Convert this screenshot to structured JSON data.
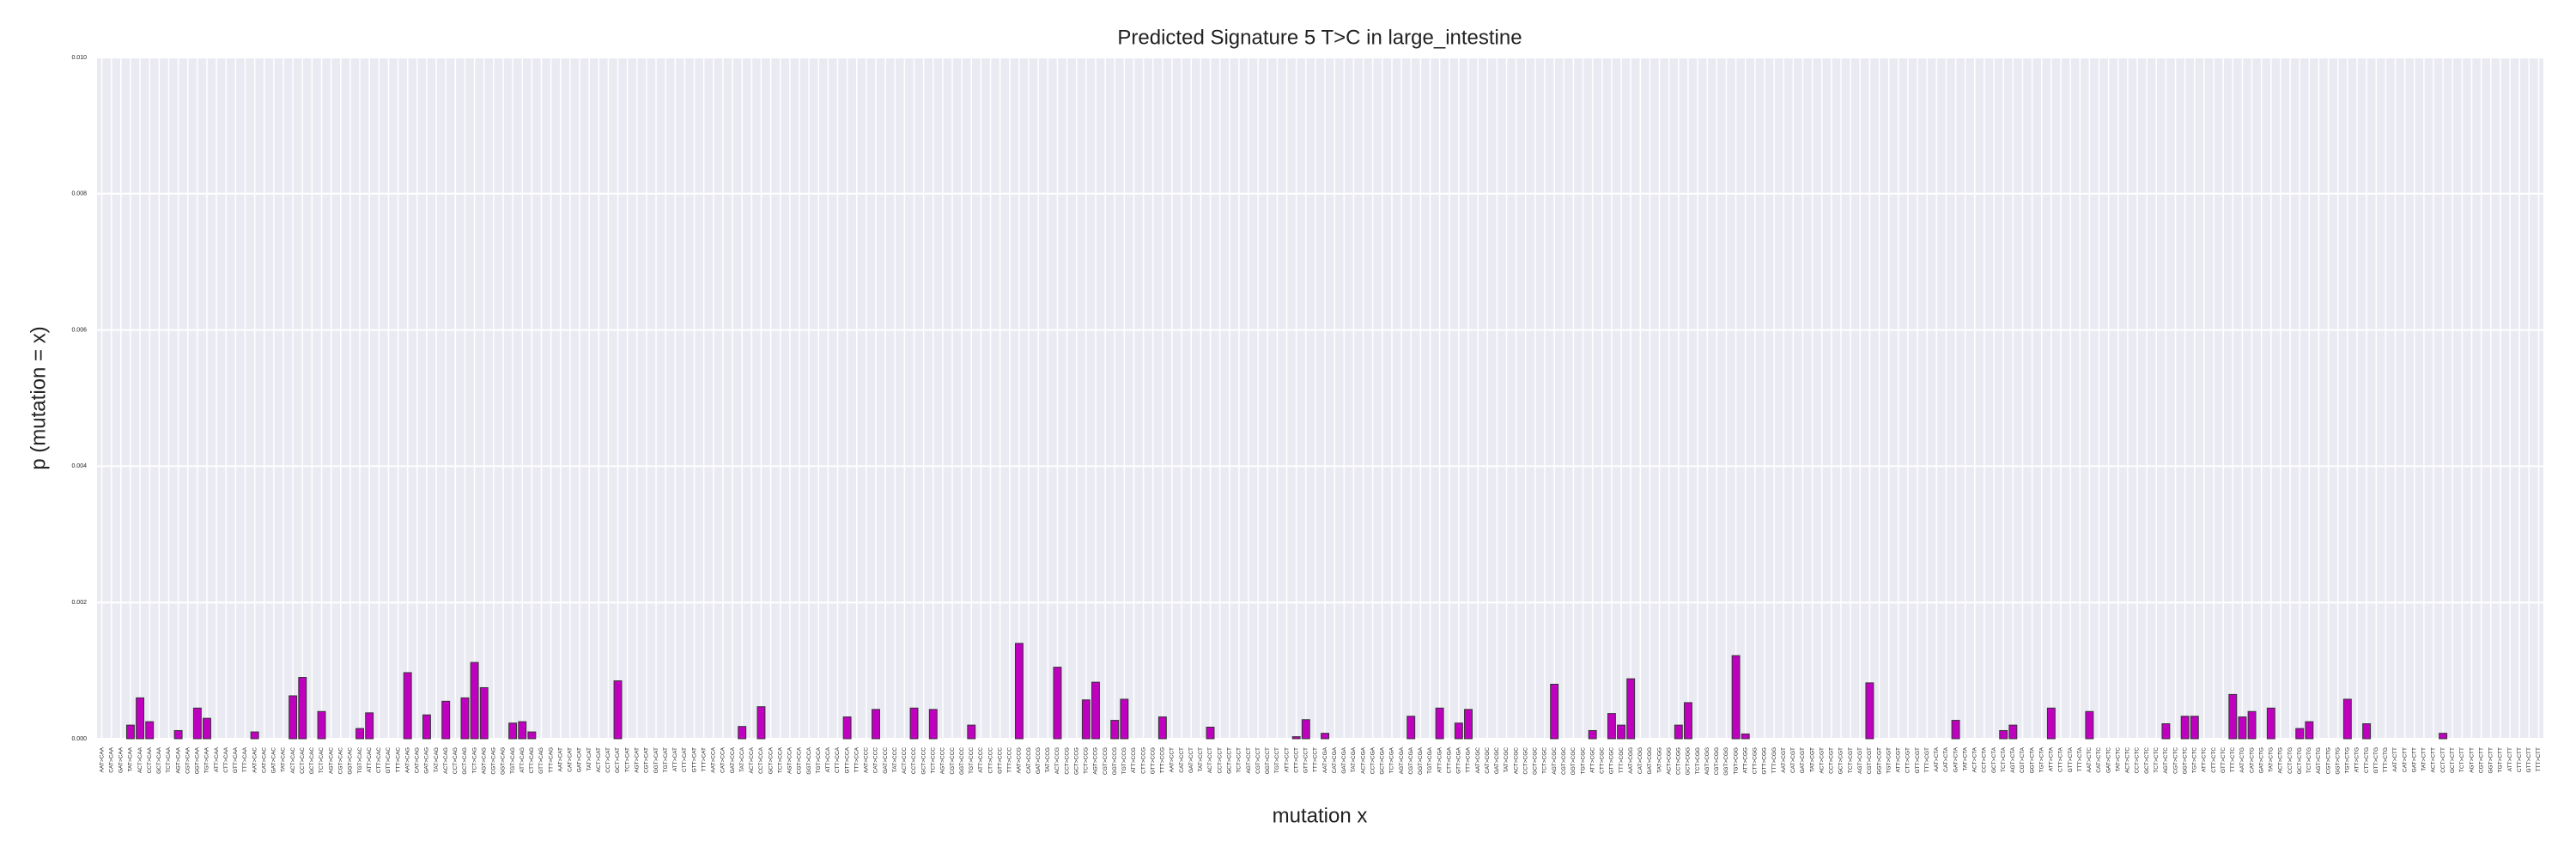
{
  "chart_data": {
    "type": "bar",
    "title": "Predicted Signature 5 T>C in large_intestine",
    "xlabel": "mutation x",
    "ylabel": "p (mutation = x)",
    "color": "#bf00bf",
    "grid": true,
    "ylim": [
      0,
      0.01
    ],
    "yticks": [
      {
        "value": 0,
        "label": "0.000"
      },
      {
        "value": 0.002,
        "label": "0.002"
      },
      {
        "value": 0.004,
        "label": "0.004"
      },
      {
        "value": 0.006,
        "label": "0.006"
      },
      {
        "value": 0.008,
        "label": "0.008"
      },
      {
        "value": 0.01,
        "label": "0.010"
      }
    ],
    "categories": [
      "AAT>CAA",
      "CAT>CAA",
      "GAT>CAA",
      "TAT>CAA",
      "ACT>CAA",
      "CCT>CAA",
      "GCT>CAA",
      "TCT>CAA",
      "AGT>CAA",
      "CGT>CAA",
      "GGT>CAA",
      "TGT>CAA",
      "ATT>CAA",
      "CTT>CAA",
      "GTT>CAA",
      "TTT>CAA",
      "AAT>CAC",
      "CAT>CAC",
      "GAT>CAC",
      "TAT>CAC",
      "ACT>CAC",
      "CCT>CAC",
      "GCT>CAC",
      "TCT>CAC",
      "AGT>CAC",
      "CGT>CAC",
      "GGT>CAC",
      "TGT>CAC",
      "ATT>CAC",
      "CTT>CAC",
      "GTT>CAC",
      "TTT>CAC",
      "AAT>CAG",
      "CAT>CAG",
      "GAT>CAG",
      "TAT>CAG",
      "ACT>CAG",
      "CCT>CAG",
      "GCT>CAG",
      "TCT>CAG",
      "AGT>CAG",
      "CGT>CAG",
      "GGT>CAG",
      "TGT>CAG",
      "ATT>CAG",
      "CTT>CAG",
      "GTT>CAG",
      "TTT>CAG",
      "AAT>CAT",
      "CAT>CAT",
      "GAT>CAT",
      "TAT>CAT",
      "ACT>CAT",
      "CCT>CAT",
      "GCT>CAT",
      "TCT>CAT",
      "AGT>CAT",
      "CGT>CAT",
      "GGT>CAT",
      "TGT>CAT",
      "ATT>CAT",
      "CTT>CAT",
      "GTT>CAT",
      "TTT>CAT",
      "AAT>CCA",
      "CAT>CCA",
      "GAT>CCA",
      "TAT>CCA",
      "ACT>CCA",
      "CCT>CCA",
      "GCT>CCA",
      "TCT>CCA",
      "AGT>CCA",
      "CGT>CCA",
      "GGT>CCA",
      "TGT>CCA",
      "ATT>CCA",
      "CTT>CCA",
      "GTT>CCA",
      "TTT>CCA",
      "AAT>CCC",
      "CAT>CCC",
      "GAT>CCC",
      "TAT>CCC",
      "ACT>CCC",
      "CCT>CCC",
      "GCT>CCC",
      "TCT>CCC",
      "AGT>CCC",
      "CGT>CCC",
      "GGT>CCC",
      "TGT>CCC",
      "ATT>CCC",
      "CTT>CCC",
      "GTT>CCC",
      "TTT>CCC",
      "AAT>CCG",
      "CAT>CCG",
      "GAT>CCG",
      "TAT>CCG",
      "ACT>CCG",
      "CCT>CCG",
      "GCT>CCG",
      "TCT>CCG",
      "AGT>CCG",
      "CGT>CCG",
      "GGT>CCG",
      "TGT>CCG",
      "ATT>CCG",
      "CTT>CCG",
      "GTT>CCG",
      "TTT>CCG",
      "AAT>CCT",
      "CAT>CCT",
      "GAT>CCT",
      "TAT>CCT",
      "ACT>CCT",
      "CCT>CCT",
      "GCT>CCT",
      "TCT>CCT",
      "AGT>CCT",
      "CGT>CCT",
      "GGT>CCT",
      "TGT>CCT",
      "ATT>CCT",
      "CTT>CCT",
      "GTT>CCT",
      "TTT>CCT",
      "AAT>CGA",
      "CAT>CGA",
      "GAT>CGA",
      "TAT>CGA",
      "ACT>CGA",
      "CCT>CGA",
      "GCT>CGA",
      "TCT>CGA",
      "AGT>CGA",
      "CGT>CGA",
      "GGT>CGA",
      "TGT>CGA",
      "ATT>CGA",
      "CTT>CGA",
      "GTT>CGA",
      "TTT>CGA",
      "AAT>CGC",
      "CAT>CGC",
      "GAT>CGC",
      "TAT>CGC",
      "ACT>CGC",
      "CCT>CGC",
      "GCT>CGC",
      "TCT>CGC",
      "AGT>CGC",
      "CGT>CGC",
      "GGT>CGC",
      "TGT>CGC",
      "ATT>CGC",
      "CTT>CGC",
      "GTT>CGC",
      "TTT>CGC",
      "AAT>CGG",
      "CAT>CGG",
      "GAT>CGG",
      "TAT>CGG",
      "ACT>CGG",
      "CCT>CGG",
      "GCT>CGG",
      "TCT>CGG",
      "AGT>CGG",
      "CGT>CGG",
      "GGT>CGG",
      "TGT>CGG",
      "ATT>CGG",
      "CTT>CGG",
      "GTT>CGG",
      "TTT>CGG",
      "AAT>CGT",
      "CAT>CGT",
      "GAT>CGT",
      "TAT>CGT",
      "ACT>CGT",
      "CCT>CGT",
      "GCT>CGT",
      "TCT>CGT",
      "AGT>CGT",
      "CGT>CGT",
      "GGT>CGT",
      "TGT>CGT",
      "ATT>CGT",
      "CTT>CGT",
      "GTT>CGT",
      "TTT>CGT",
      "AAT>CTA",
      "CAT>CTA",
      "GAT>CTA",
      "TAT>CTA",
      "ACT>CTA",
      "CCT>CTA",
      "GCT>CTA",
      "TCT>CTA",
      "AGT>CTA",
      "CGT>CTA",
      "GGT>CTA",
      "TGT>CTA",
      "ATT>CTA",
      "CTT>CTA",
      "GTT>CTA",
      "TTT>CTA",
      "AAT>CTC",
      "CAT>CTC",
      "GAT>CTC",
      "TAT>CTC",
      "ACT>CTC",
      "CCT>CTC",
      "GCT>CTC",
      "TCT>CTC",
      "AGT>CTC",
      "CGT>CTC",
      "GGT>CTC",
      "TGT>CTC",
      "ATT>CTC",
      "CTT>CTC",
      "GTT>CTC",
      "TTT>CTC",
      "AAT>CTG",
      "CAT>CTG",
      "GAT>CTG",
      "TAT>CTG",
      "ACT>CTG",
      "CCT>CTG",
      "GCT>CTG",
      "TCT>CTG",
      "AGT>CTG",
      "CGT>CTG",
      "GGT>CTG",
      "TGT>CTG",
      "ATT>CTG",
      "CTT>CTG",
      "GTT>CTG",
      "TTT>CTG",
      "AAT>CTT",
      "CAT>CTT",
      "GAT>CTT",
      "TAT>CTT",
      "ACT>CTT",
      "CCT>CTT",
      "GCT>CTT",
      "TCT>CTT",
      "AGT>CTT",
      "CGT>CTT",
      "GGT>CTT",
      "TGT>CTT",
      "ATT>CTT",
      "CTT>CTT",
      "GTT>CTT",
      "TTT>CTT"
    ],
    "values": [
      0,
      0,
      0,
      0.0002,
      0.0006,
      0.00025,
      0,
      0,
      0.00012,
      0,
      0.00045,
      0.0003,
      0,
      0,
      0,
      0,
      0.0001,
      0,
      0,
      0,
      0.00063,
      0.0009,
      0,
      0.0004,
      0,
      0,
      0,
      0.00015,
      0.00038,
      0,
      0,
      0,
      0.00097,
      0,
      0.00035,
      0,
      0.00055,
      0,
      0.0006,
      0.00112,
      0.00075,
      0,
      0,
      0.00023,
      0.00025,
      0.0001,
      0,
      0,
      0,
      0,
      0,
      0,
      0,
      0,
      0.00085,
      0,
      0,
      0,
      0,
      0,
      0,
      0,
      0,
      0,
      0,
      0,
      0,
      0.00018,
      0,
      0.00047,
      0,
      0,
      0,
      0,
      0,
      0,
      0,
      0,
      0.00032,
      0,
      0,
      0.00043,
      0,
      0,
      0,
      0.00045,
      0,
      0.00043,
      0,
      0,
      0,
      0.0002,
      0,
      0,
      0,
      0,
      0.0014,
      0,
      0,
      0,
      0.00105,
      0,
      0,
      0.00057,
      0.00083,
      0,
      0.00027,
      0.00058,
      0,
      0,
      0,
      0.00032,
      0,
      0,
      0,
      0,
      0.00017,
      0,
      0,
      0,
      0,
      0,
      0,
      0,
      0,
      3e-05,
      0.00028,
      0,
      8e-05,
      0,
      0,
      0,
      0,
      0,
      0,
      0,
      0,
      0.00033,
      0,
      0,
      0.00045,
      0,
      0.00023,
      0.00043,
      0,
      0,
      0,
      0,
      0,
      0,
      0,
      0,
      0.0008,
      0,
      0,
      0,
      0.00012,
      0,
      0.00037,
      0.0002,
      0.00088,
      0,
      0,
      0,
      0,
      0.0002,
      0.00053,
      0,
      0,
      0,
      0,
      0.00122,
      7e-05,
      0,
      0,
      0,
      0,
      0,
      0,
      0,
      0,
      0,
      0,
      0,
      0,
      0.00082,
      0,
      0,
      0,
      0,
      0,
      0,
      0,
      0,
      0.00027,
      0,
      0,
      0,
      0,
      0.00012,
      0.0002,
      0,
      0,
      0,
      0.00045,
      0,
      0,
      0,
      0.0004,
      0,
      0,
      0,
      0,
      0,
      0,
      0,
      0.00022,
      0,
      0.00033,
      0.00033,
      0,
      0,
      0,
      0.00065,
      0.00032,
      0.0004,
      0,
      0.00045,
      0,
      0,
      0.00015,
      0.00025,
      0,
      0,
      0,
      0.00058,
      0,
      0.00022,
      0,
      0,
      0,
      0,
      0,
      0,
      0,
      8e-05,
      0,
      0,
      0,
      0,
      0,
      0,
      0,
      0,
      0,
      0
    ]
  }
}
